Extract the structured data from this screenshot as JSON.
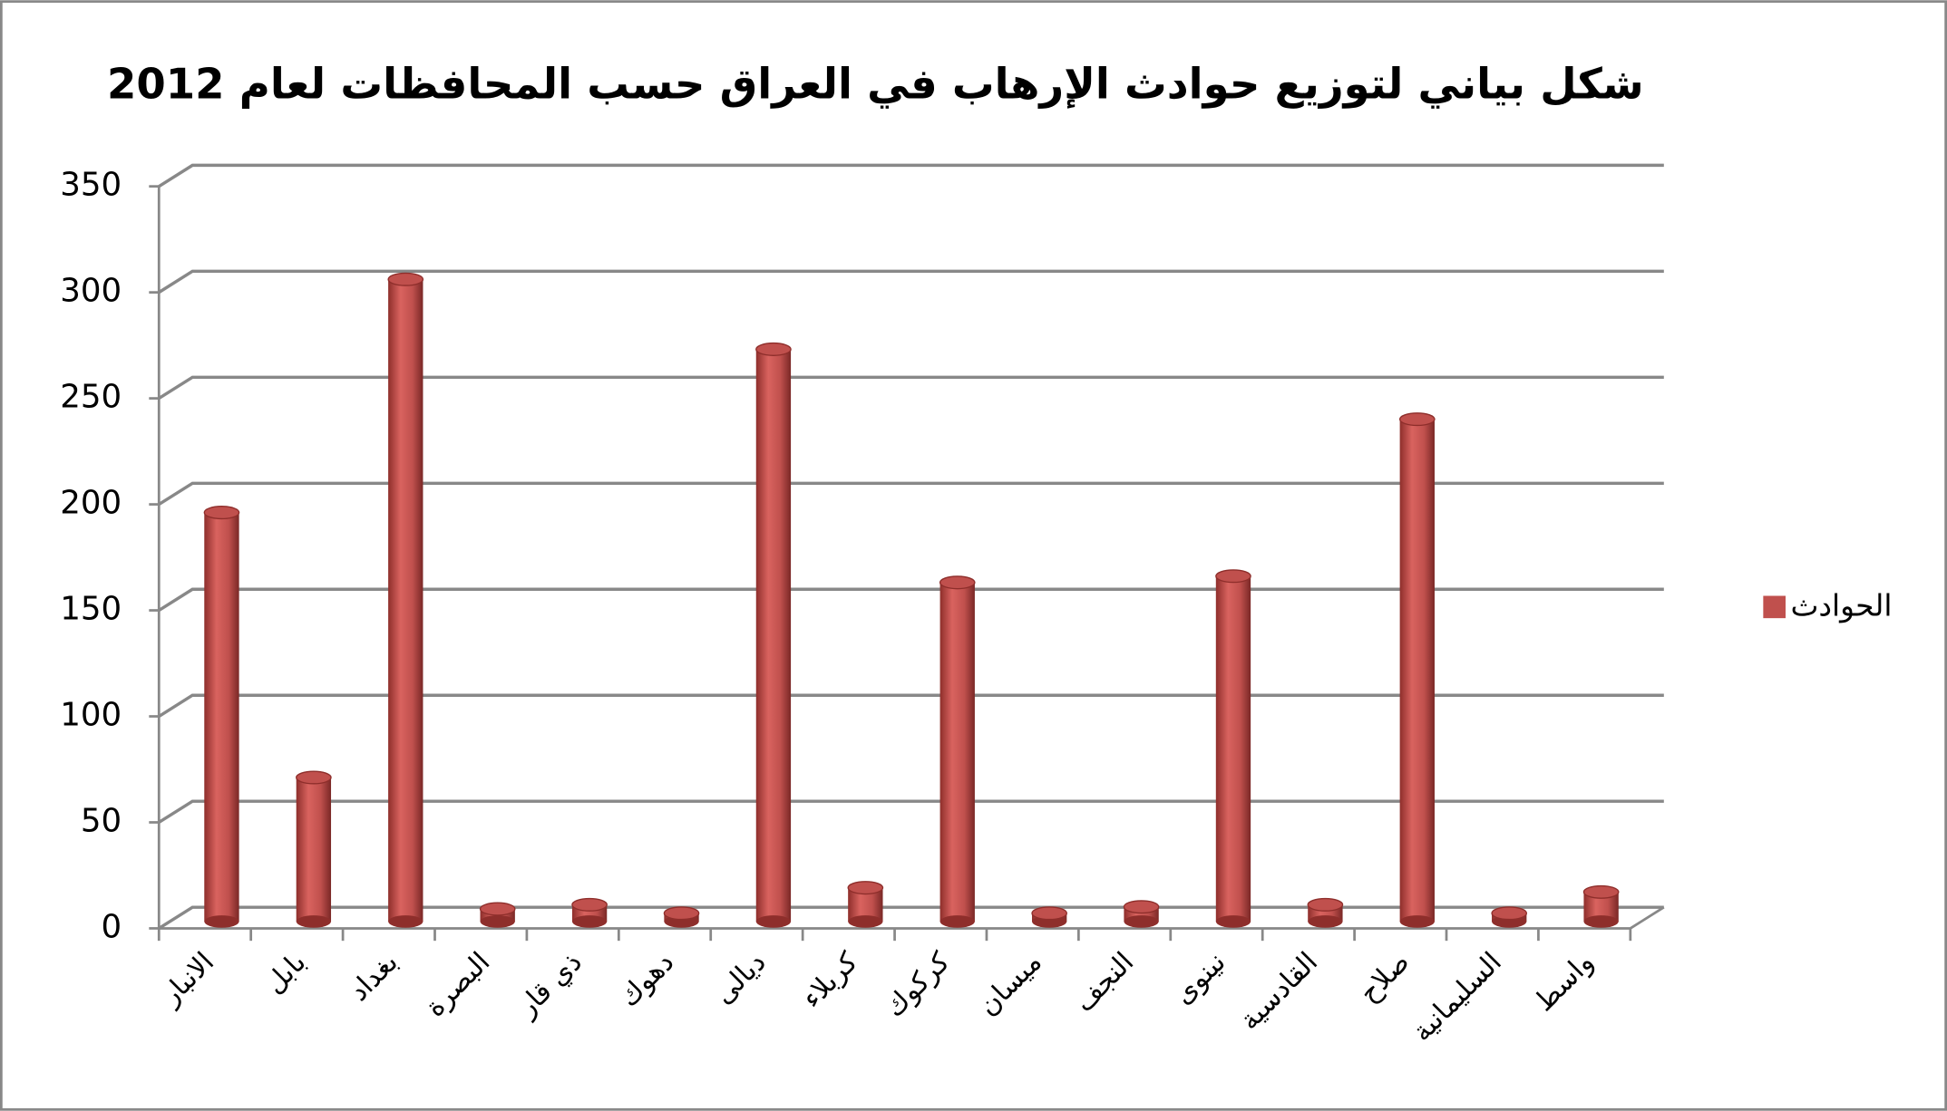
{
  "chart_data": {
    "type": "bar",
    "title": "شكل بياني لتوزيع حوادث الإرهاب في العراق حسب المحافظات لعام 2012",
    "categories": [
      "الانبار",
      "بابل",
      "بغداد",
      "البصرة",
      "ذي قار",
      "دهوك",
      "ديالى",
      "كربلاء",
      "كركوك",
      "ميسان",
      "النجف",
      "نينوى",
      "القادسية",
      "صلاح",
      "السليمانية",
      "واسط"
    ],
    "series": [
      {
        "name": "الحوادث",
        "color": "#c0504d",
        "values": [
          190,
          65,
          300,
          3,
          5,
          1,
          267,
          13,
          157,
          1,
          4,
          160,
          5,
          234,
          1,
          11
        ]
      }
    ],
    "ylim": [
      0,
      350
    ],
    "yticks": [
      0,
      50,
      100,
      150,
      200,
      250,
      300,
      350
    ],
    "grid": true,
    "legend": "right"
  }
}
